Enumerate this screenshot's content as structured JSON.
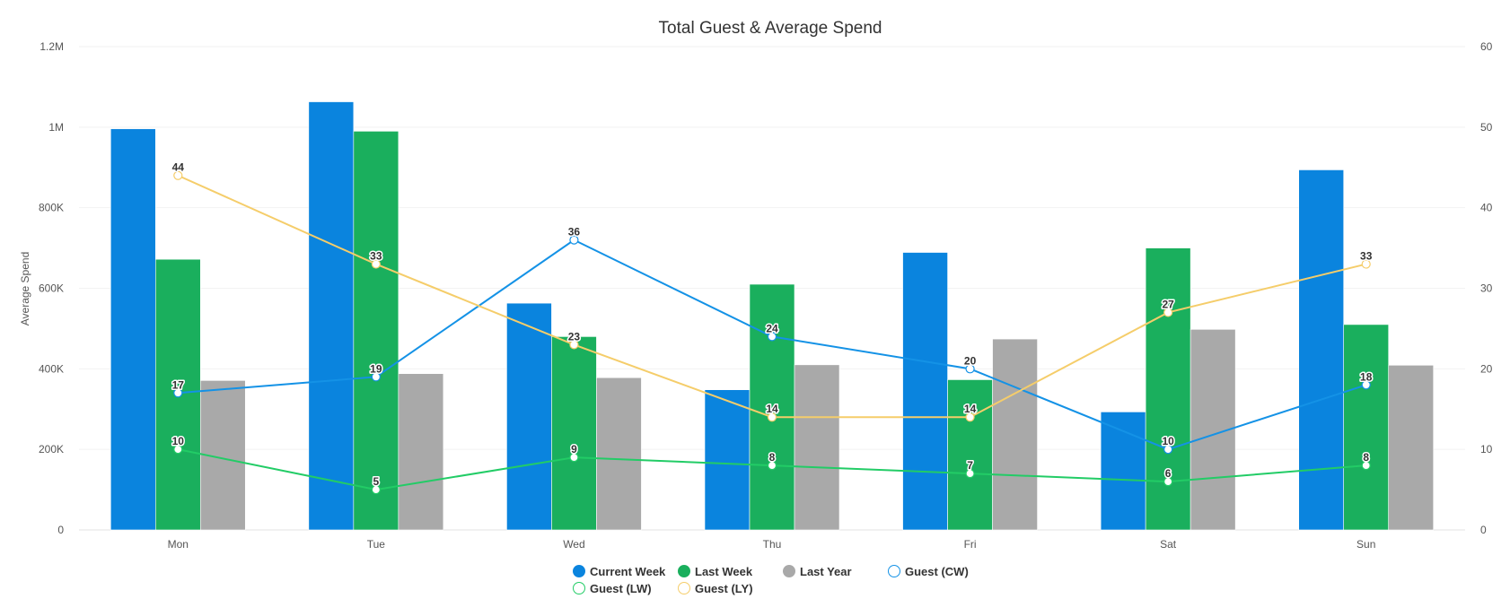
{
  "chart_data": {
    "type": "bar",
    "title": "Total Guest & Average Spend",
    "ylabel": "Average Spend",
    "y2label": "",
    "categories": [
      "Mon",
      "Tue",
      "Wed",
      "Thu",
      "Fri",
      "Sat",
      "Sun"
    ],
    "ylim": [
      0,
      1200000
    ],
    "yticks": [
      0,
      200000,
      400000,
      600000,
      800000,
      1000000,
      1200000
    ],
    "ytick_labels": [
      "0",
      "200K",
      "400K",
      "600K",
      "800K",
      "1M",
      "1.2M"
    ],
    "y2lim": [
      0,
      60
    ],
    "y2ticks": [
      0,
      10,
      20,
      30,
      40,
      50,
      60
    ],
    "grid": true,
    "legend_position": "bottom-center",
    "bar_series": [
      {
        "name": "Current Week",
        "color": "#0a84de",
        "values": [
          996000,
          1063000,
          563000,
          348000,
          689000,
          293000,
          894000
        ]
      },
      {
        "name": "Last Week",
        "color": "#1aaf5d",
        "values": [
          672000,
          990000,
          480000,
          610000,
          373000,
          700000,
          510000
        ]
      },
      {
        "name": "Last Year",
        "color": "#a9a9a9",
        "values": [
          371000,
          388000,
          378000,
          410000,
          474000,
          498000,
          409000
        ]
      }
    ],
    "line_series": [
      {
        "name": "Guest (CW)",
        "color": "#1492e6",
        "axis": "right",
        "values": [
          17,
          19,
          36,
          24,
          20,
          10,
          18
        ]
      },
      {
        "name": "Guest (LW)",
        "color": "#22cc66",
        "axis": "right",
        "values": [
          10,
          5,
          9,
          8,
          7,
          6,
          8
        ]
      },
      {
        "name": "Guest (LY)",
        "color": "#f5cd6a",
        "axis": "right",
        "values": [
          44,
          33,
          23,
          14,
          14,
          27,
          33
        ]
      }
    ]
  }
}
